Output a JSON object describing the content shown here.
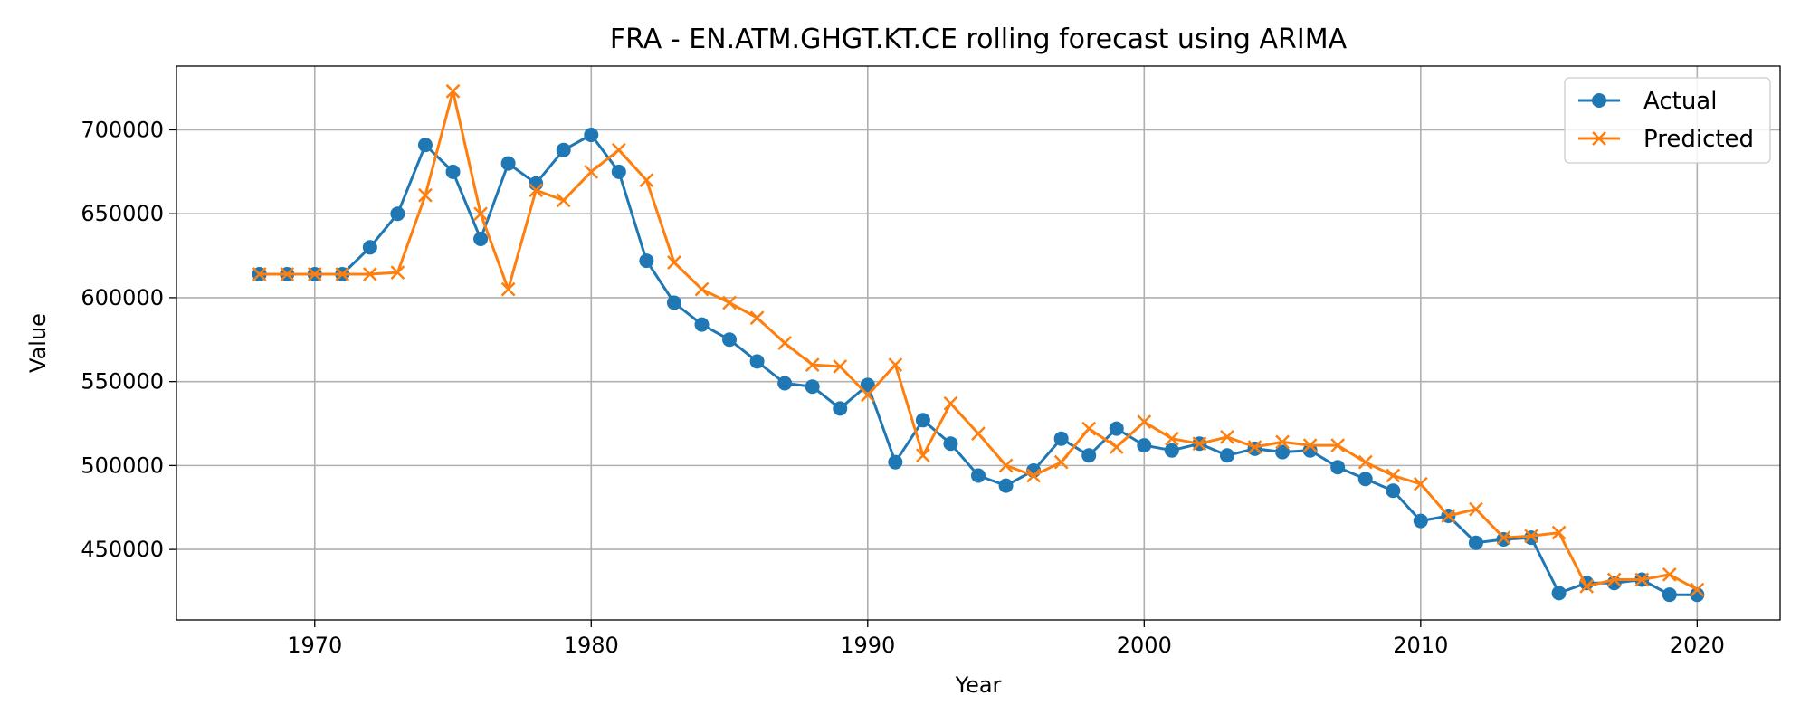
{
  "chart_data": {
    "type": "line",
    "title": "FRA - EN.ATM.GHGT.KT.CE rolling forecast using ARIMA",
    "xlabel": "Year",
    "ylabel": "Value",
    "xlim": [
      1965,
      2023
    ],
    "ylim": [
      408000,
      738000
    ],
    "xticks": [
      1970,
      1980,
      1990,
      2000,
      2010,
      2020
    ],
    "yticks": [
      450000,
      500000,
      550000,
      600000,
      650000,
      700000
    ],
    "grid": true,
    "legend_position": "top-right",
    "x": [
      1968,
      1969,
      1970,
      1971,
      1972,
      1973,
      1974,
      1975,
      1976,
      1977,
      1978,
      1979,
      1980,
      1981,
      1982,
      1983,
      1984,
      1985,
      1986,
      1987,
      1988,
      1989,
      1990,
      1991,
      1992,
      1993,
      1994,
      1995,
      1996,
      1997,
      1998,
      1999,
      2000,
      2001,
      2002,
      2003,
      2004,
      2005,
      2006,
      2007,
      2008,
      2009,
      2010,
      2011,
      2012,
      2013,
      2014,
      2015,
      2016,
      2017,
      2018,
      2019,
      2020
    ],
    "series": [
      {
        "name": "Actual",
        "color": "#1f77b4",
        "marker": "circle",
        "values": [
          614000,
          614000,
          614000,
          614000,
          630000,
          650000,
          691000,
          675000,
          635000,
          680000,
          668000,
          688000,
          697000,
          675000,
          622000,
          597000,
          584000,
          575000,
          562000,
          549000,
          547000,
          534000,
          548000,
          502000,
          527000,
          513000,
          494000,
          488000,
          497000,
          516000,
          506000,
          522000,
          512000,
          509000,
          513000,
          506000,
          510000,
          508000,
          509000,
          499000,
          492000,
          485000,
          467000,
          470000,
          454000,
          456000,
          457000,
          424000,
          430000,
          430000,
          432000,
          423000,
          423000
        ]
      },
      {
        "name": "Predicted",
        "color": "#ff7f0e",
        "marker": "x",
        "values": [
          614000,
          614000,
          614000,
          614000,
          614000,
          615000,
          661000,
          723000,
          650000,
          605000,
          664000,
          658000,
          675000,
          688000,
          670000,
          621000,
          605000,
          597000,
          588000,
          573000,
          560000,
          559000,
          542000,
          560000,
          506000,
          537000,
          519000,
          500000,
          494000,
          502000,
          522000,
          511000,
          526000,
          516000,
          513000,
          517000,
          511000,
          514000,
          512000,
          512000,
          502000,
          494000,
          489000,
          470000,
          474000,
          457000,
          458000,
          460000,
          428000,
          432000,
          432000,
          435000,
          426000
        ]
      }
    ]
  }
}
